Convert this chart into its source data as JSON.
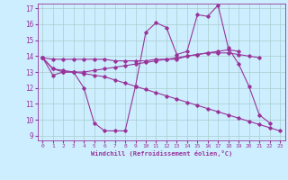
{
  "xlabel": "Windchill (Refroidissement éolien,°C)",
  "xlim": [
    -0.5,
    23.5
  ],
  "ylim": [
    8.7,
    17.3
  ],
  "yticks": [
    9,
    10,
    11,
    12,
    13,
    14,
    15,
    16,
    17
  ],
  "xticks": [
    0,
    1,
    2,
    3,
    4,
    5,
    6,
    7,
    8,
    9,
    10,
    11,
    12,
    13,
    14,
    15,
    16,
    17,
    18,
    19,
    20,
    21,
    22,
    23
  ],
  "bg_color": "#cceeff",
  "line_color": "#993399",
  "grid_color": "#aacccc",
  "lines": [
    {
      "x": [
        0,
        1,
        2,
        3,
        4,
        5,
        6,
        7,
        8,
        9,
        10,
        11,
        12,
        13,
        14,
        15,
        16,
        17,
        18,
        19,
        20,
        21,
        22
      ],
      "y": [
        13.9,
        12.8,
        13.0,
        13.0,
        12.0,
        9.8,
        9.3,
        9.3,
        9.3,
        12.1,
        15.5,
        16.1,
        15.8,
        14.1,
        14.3,
        16.6,
        16.5,
        17.2,
        14.5,
        13.5,
        12.1,
        10.3,
        9.8
      ]
    },
    {
      "x": [
        0,
        1,
        2,
        3,
        4,
        5,
        6,
        7,
        8,
        9,
        10,
        11,
        12,
        13,
        14,
        15,
        16,
        17,
        18,
        19,
        20,
        21
      ],
      "y": [
        13.9,
        13.8,
        13.8,
        13.8,
        13.8,
        13.8,
        13.8,
        13.7,
        13.7,
        13.7,
        13.7,
        13.8,
        13.8,
        13.8,
        14.0,
        14.1,
        14.2,
        14.2,
        14.2,
        14.1,
        14.0,
        13.9
      ]
    },
    {
      "x": [
        0,
        1,
        2,
        3,
        4,
        5,
        6,
        7,
        8,
        9,
        10,
        11,
        12,
        13,
        14,
        15,
        16,
        17,
        18,
        19
      ],
      "y": [
        13.9,
        13.2,
        13.0,
        13.0,
        13.0,
        13.1,
        13.2,
        13.3,
        13.4,
        13.5,
        13.6,
        13.7,
        13.8,
        13.9,
        14.0,
        14.1,
        14.2,
        14.3,
        14.4,
        14.3
      ]
    },
    {
      "x": [
        0,
        1,
        2,
        3,
        4,
        5,
        6,
        7,
        8,
        9,
        10,
        11,
        12,
        13,
        14,
        15,
        16,
        17,
        18,
        19,
        20,
        21,
        22,
        23
      ],
      "y": [
        13.9,
        13.2,
        13.1,
        13.0,
        12.9,
        12.8,
        12.7,
        12.5,
        12.3,
        12.1,
        11.9,
        11.7,
        11.5,
        11.3,
        11.1,
        10.9,
        10.7,
        10.5,
        10.3,
        10.1,
        9.9,
        9.7,
        9.5,
        9.3
      ]
    }
  ]
}
